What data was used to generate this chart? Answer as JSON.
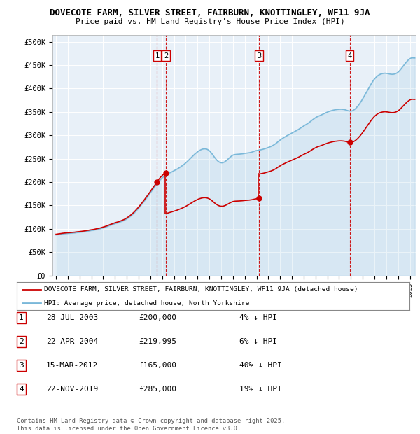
{
  "title_line1": "DOVECOTE FARM, SILVER STREET, FAIRBURN, KNOTTINGLEY, WF11 9JA",
  "title_line2": "Price paid vs. HM Land Registry's House Price Index (HPI)",
  "ylabel_ticks": [
    "£0",
    "£50K",
    "£100K",
    "£150K",
    "£200K",
    "£250K",
    "£300K",
    "£350K",
    "£400K",
    "£450K",
    "£500K"
  ],
  "ytick_values": [
    0,
    50000,
    100000,
    150000,
    200000,
    250000,
    300000,
    350000,
    400000,
    450000,
    500000
  ],
  "ylim": [
    0,
    515000
  ],
  "xlim_start": 1994.7,
  "xlim_end": 2025.5,
  "hpi_color": "#7ab8d9",
  "price_color": "#cc0000",
  "background_color": "#e8f0f8",
  "plot_bg_color": "#e8f0f8",
  "grid_color": "#ffffff",
  "legend_label_red": "DOVECOTE FARM, SILVER STREET, FAIRBURN, KNOTTINGLEY, WF11 9JA (detached house)",
  "legend_label_blue": "HPI: Average price, detached house, North Yorkshire",
  "transactions": [
    {
      "num": 1,
      "date": "28-JUL-2003",
      "price": 200000,
      "pct": "4%",
      "dir": "↓",
      "year": 2003.57
    },
    {
      "num": 2,
      "date": "22-APR-2004",
      "price": 219995,
      "pct": "6%",
      "dir": "↓",
      "year": 2004.31
    },
    {
      "num": 3,
      "date": "15-MAR-2012",
      "price": 165000,
      "pct": "40%",
      "dir": "↓",
      "year": 2012.21
    },
    {
      "num": 4,
      "date": "22-NOV-2019",
      "price": 285000,
      "pct": "19%",
      "dir": "↓",
      "year": 2019.9
    }
  ],
  "footer": "Contains HM Land Registry data © Crown copyright and database right 2025.\nThis data is licensed under the Open Government Licence v3.0."
}
